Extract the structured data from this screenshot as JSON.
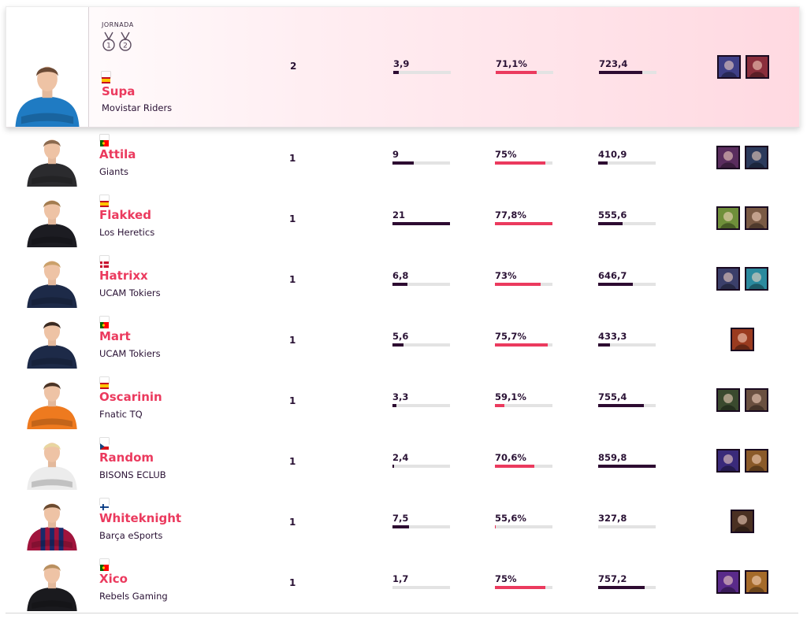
{
  "header": {
    "jornada_label": "JORNADA",
    "medal_1_number": "1",
    "medal_2_number": "2"
  },
  "players": [
    {
      "name": "Supa",
      "team": "Movistar Riders",
      "count": "2",
      "flag": "ES",
      "stat1": "3,9",
      "stat2": "71,1%",
      "stat3": "723,4",
      "bar1": 0.1,
      "bar2": 0.71,
      "bar3": 0.76,
      "jersey": "#1f7bc3",
      "hair": "#6b4a35",
      "champions": [
        "#3e3f86",
        "#8a2e3c"
      ]
    },
    {
      "name": "Attila",
      "team": "Giants",
      "count": "1",
      "flag": "PT",
      "stat1": "9",
      "stat2": "75%",
      "stat3": "410,9",
      "bar1": 0.37,
      "bar2": 0.88,
      "bar3": 0.17,
      "jersey": "#2b2b2e",
      "hair": "#8b6a4f",
      "champions": [
        "#5a2d5e",
        "#2c3a5c"
      ]
    },
    {
      "name": "Flakked",
      "team": "Los Heretics",
      "count": "1",
      "flag": "ES",
      "stat1": "21",
      "stat2": "77,8%",
      "stat3": "555,6",
      "bar1": 1.0,
      "bar2": 1.0,
      "bar3": 0.43,
      "jersey": "#1c1c22",
      "hair": "#a37c4f",
      "champions": [
        "#6f8f3a",
        "#7a5a44"
      ]
    },
    {
      "name": "Hatrixx",
      "team": "UCAM Tokiers",
      "count": "1",
      "flag": "DK",
      "stat1": "6,8",
      "stat2": "73%",
      "stat3": "646,7",
      "bar1": 0.26,
      "bar2": 0.79,
      "bar3": 0.6,
      "jersey": "#1d2a48",
      "hair": "#caa06a",
      "champions": [
        "#3b3f6a",
        "#2b8a9e"
      ]
    },
    {
      "name": "Mart",
      "team": "UCAM Tokiers",
      "count": "1",
      "flag": "PT",
      "stat1": "5,6",
      "stat2": "75,7%",
      "stat3": "433,3",
      "bar1": 0.19,
      "bar2": 0.92,
      "bar3": 0.2,
      "jersey": "#1d2a48",
      "hair": "#3a2a22",
      "champions": [
        "#9a3b1f"
      ]
    },
    {
      "name": "Oscarinin",
      "team": "Fnatic TQ",
      "count": "1",
      "flag": "ES",
      "stat1": "3,3",
      "stat2": "59,1%",
      "stat3": "755,4",
      "bar1": 0.07,
      "bar2": 0.17,
      "bar3": 0.8,
      "jersey": "#ee7a1f",
      "hair": "#4a3426",
      "champions": [
        "#3a4a2e",
        "#6a5040"
      ]
    },
    {
      "name": "Random",
      "team": "BISONS ECLUB",
      "count": "1",
      "flag": "CZ",
      "stat1": "2,4",
      "stat2": "70,6%",
      "stat3": "859,8",
      "bar1": 0.03,
      "bar2": 0.69,
      "bar3": 1.0,
      "jersey": "#ececec",
      "hair": "#e8d6a0",
      "champions": [
        "#3a2a7a",
        "#8a5a2a"
      ]
    },
    {
      "name": "Whiteknight",
      "team": "Barça eSports",
      "count": "1",
      "flag": "FI",
      "stat1": "7,5",
      "stat2": "55,6%",
      "stat3": "327,8",
      "bar1": 0.29,
      "bar2": 0.01,
      "bar3": 0.0,
      "jersey": "#a0143c",
      "hair": "#6a4a30",
      "champions": [
        "#4a3022"
      ]
    },
    {
      "name": "Xico",
      "team": "Rebels Gaming",
      "count": "1",
      "flag": "PT",
      "stat1": "1,7",
      "stat2": "75%",
      "stat3": "757,2",
      "bar1": 0.0,
      "bar2": 0.88,
      "bar3": 0.81,
      "jersey": "#1a1a1e",
      "hair": "#b89060",
      "champions": [
        "#5a2a8a",
        "#a56a2a"
      ]
    }
  ]
}
